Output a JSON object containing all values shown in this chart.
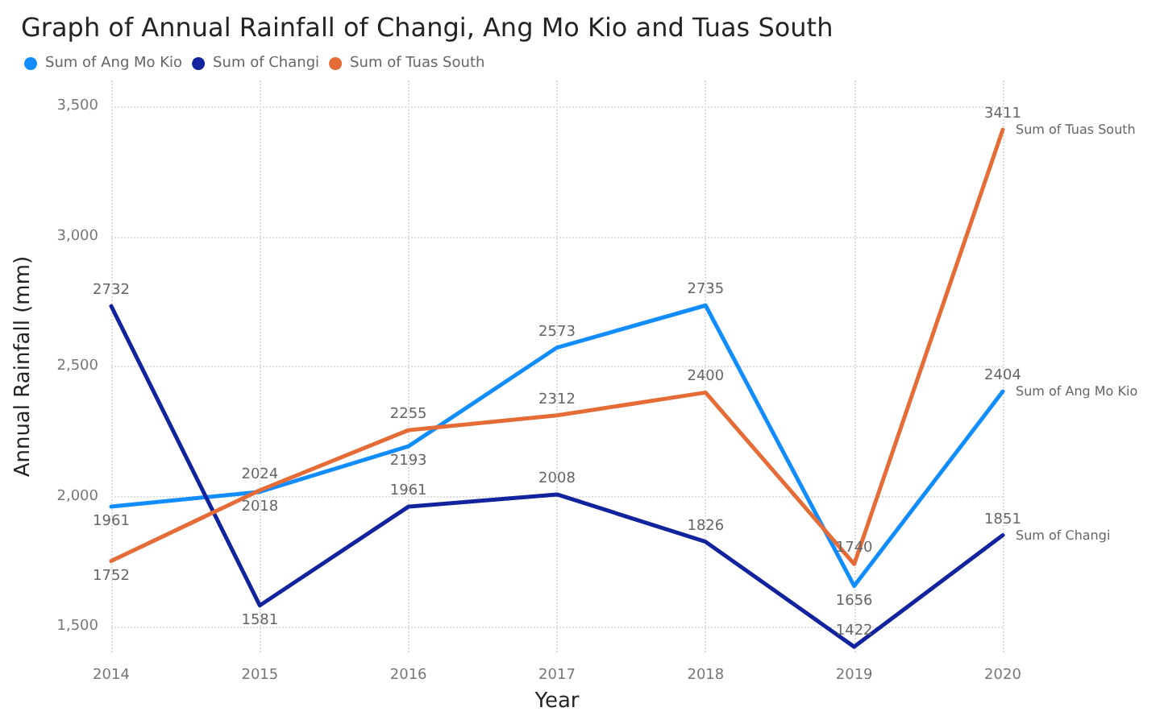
{
  "chart_data": {
    "type": "line",
    "title": "Graph of Annual Rainfall of Changi, Ang Mo Kio and Tuas South",
    "xlabel": "Year",
    "ylabel": "Annual Rainfall (mm)",
    "categories": [
      "2014",
      "2015",
      "2016",
      "2017",
      "2018",
      "2019",
      "2020"
    ],
    "series": [
      {
        "name": "Sum of Ang Mo Kio",
        "color": "#118dff",
        "values": [
          1961,
          2018,
          2193,
          2573,
          2735,
          1656,
          2404
        ]
      },
      {
        "name": "Sum of Changi",
        "color": "#12239e",
        "values": [
          2732,
          1581,
          1961,
          2008,
          1826,
          1422,
          1851
        ]
      },
      {
        "name": "Sum of Tuas South",
        "color": "#e66c37",
        "values": [
          1752,
          2024,
          2255,
          2312,
          2400,
          1740,
          3411
        ]
      }
    ],
    "ylim": [
      1400,
      3600
    ],
    "yticks": [
      {
        "value": 1500,
        "label": "1,500"
      },
      {
        "value": 2000,
        "label": "2,000"
      },
      {
        "value": 2500,
        "label": "2,500"
      },
      {
        "value": 3000,
        "label": "3,000"
      },
      {
        "value": 3500,
        "label": "3,500"
      }
    ],
    "grid": true,
    "legend": "top left",
    "data_labels": true,
    "marker": "none",
    "line_style": "solid"
  }
}
